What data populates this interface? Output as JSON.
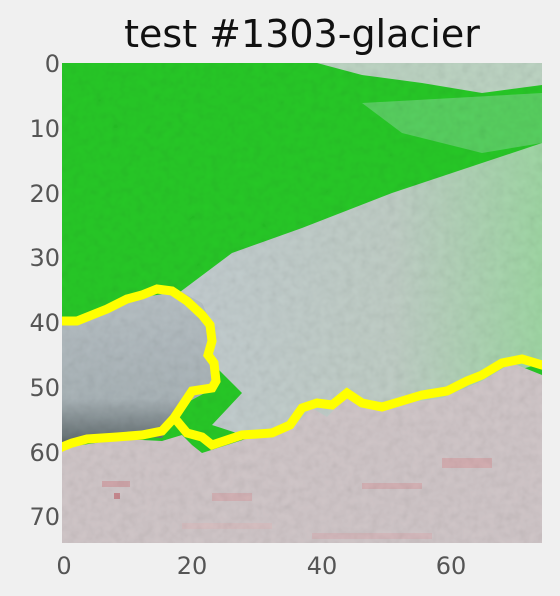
{
  "figure": {
    "title": "test #1303-glacier"
  },
  "chart_data": {
    "type": "heatmap",
    "title": "test #1303-glacier",
    "xlabel": "",
    "ylabel": "",
    "x_ticks": [
      "0",
      "20",
      "40",
      "60"
    ],
    "y_ticks": [
      "0",
      "10",
      "20",
      "30",
      "40",
      "50",
      "60",
      "70"
    ],
    "xlim": [
      0,
      74
    ],
    "ylim": [
      74,
      0
    ],
    "grid": false,
    "colors": {
      "background": "#f0f0f0",
      "vegetation_green": "#27c827",
      "ice_gray": "#c3ccd0",
      "rock_dark": "#596567",
      "ground_pink": "#d0c5c7",
      "boundary_yellow": "#ffff00"
    }
  }
}
